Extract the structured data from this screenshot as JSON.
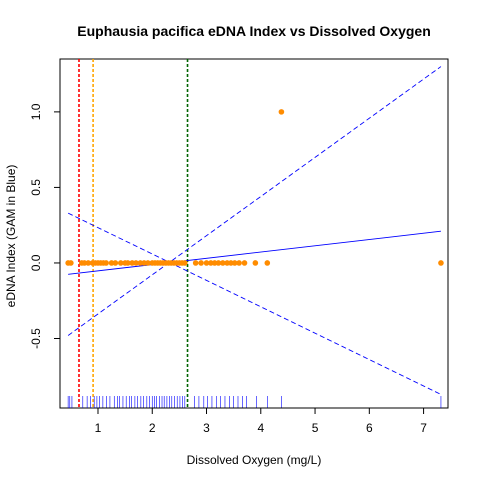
{
  "chart_data": {
    "type": "scatter",
    "title": "Euphausia pacifica eDNA Index vs Dissolved Oxygen",
    "xlabel": "Dissolved Oxygen (mg/L)",
    "ylabel": "eDNA Index (GAM in Blue)",
    "xlim": [
      0.3,
      7.45
    ],
    "ylim": [
      -0.96,
      1.35
    ],
    "x_ticks": [
      1,
      2,
      3,
      4,
      5,
      6,
      7
    ],
    "y_ticks": [
      -0.5,
      0.0,
      0.5,
      1.0
    ],
    "y_tick_labels": [
      "-0.5",
      "0.0",
      "0.5",
      "1.0"
    ],
    "grid": false,
    "colors": {
      "points": "#ff8c00",
      "gam_fit": "#0000ff",
      "rug": "#0000ff",
      "line_red": "#ff0000",
      "line_orange": "#ffa500",
      "line_green": "#006400"
    },
    "points": {
      "x": [
        0.45,
        0.5,
        0.7,
        0.75,
        0.82,
        0.9,
        0.95,
        1.0,
        1.05,
        1.1,
        1.15,
        1.25,
        1.32,
        1.42,
        1.5,
        1.55,
        1.63,
        1.7,
        1.78,
        1.85,
        1.92,
        2.0,
        2.05,
        2.1,
        2.15,
        2.2,
        2.25,
        2.3,
        2.35,
        2.4,
        2.45,
        2.5,
        2.55,
        2.6,
        2.8,
        2.9,
        3.0,
        3.08,
        3.15,
        3.22,
        3.3,
        3.38,
        3.45,
        3.52,
        3.6,
        3.7,
        3.9,
        4.12,
        4.38,
        7.32
      ],
      "y": [
        0,
        0,
        0,
        0,
        0,
        0,
        0,
        0,
        0,
        0,
        0,
        0,
        0,
        0,
        0,
        0,
        0,
        0,
        0,
        0,
        0,
        0,
        0,
        0,
        0,
        0,
        0,
        0,
        0,
        0,
        0,
        0,
        0,
        0,
        0,
        0,
        0,
        0,
        0,
        0,
        0,
        0,
        0,
        0,
        0,
        0,
        0,
        0,
        1.0,
        0
      ]
    },
    "gam_fit": {
      "x": [
        0.45,
        7.32
      ],
      "y": [
        -0.075,
        0.21
      ]
    },
    "gam_upper": {
      "x": [
        0.45,
        7.32
      ],
      "y": [
        -0.48,
        1.3
      ]
    },
    "gam_lower": {
      "x": [
        0.45,
        7.32
      ],
      "y": [
        0.33,
        -0.87
      ]
    },
    "vertical_lines": [
      {
        "x": 0.65,
        "color": "#ff0000"
      },
      {
        "x": 0.91,
        "color": "#ffa500"
      },
      {
        "x": 2.65,
        "color": "#006400"
      }
    ],
    "rug_x": [
      0.45,
      0.48,
      0.52,
      0.72,
      0.8,
      0.86,
      0.93,
      0.98,
      1.03,
      1.09,
      1.16,
      1.22,
      1.3,
      1.36,
      1.4,
      1.46,
      1.52,
      1.58,
      1.62,
      1.68,
      1.73,
      1.79,
      1.84,
      1.9,
      1.95,
      2.0,
      2.04,
      2.08,
      2.13,
      2.18,
      2.22,
      2.27,
      2.32,
      2.36,
      2.41,
      2.46,
      2.51,
      2.56,
      2.6,
      2.78,
      2.86,
      2.95,
      3.02,
      3.1,
      3.18,
      3.26,
      3.34,
      3.42,
      3.5,
      3.58,
      3.66,
      3.74,
      3.92,
      4.12,
      4.38,
      7.32
    ]
  }
}
